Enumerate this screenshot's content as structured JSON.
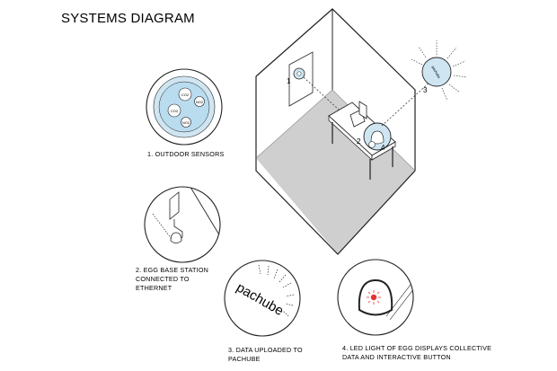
{
  "title": "SYSTEMS DIAGRAM",
  "sensors": {
    "gases": [
      "CO2",
      "NO2",
      "CO2",
      "NO2"
    ]
  },
  "steps": [
    {
      "number": "1",
      "caption_lines": [
        "1.   OUTDOOR SENSORS"
      ]
    },
    {
      "number": "2",
      "caption_lines": [
        "2. EGG BASE STATION",
        "CONNECTED TO",
        "ETHERNET"
      ]
    },
    {
      "number": "3",
      "caption_lines": [
        "3. DATA UPLOADED TO",
        "PACHUBE"
      ]
    },
    {
      "number": "4",
      "caption_lines": [
        "4. LED LIGHT OF EGG DISPLAYS COLLECTIVE",
        "DATA AND INTERACTIVE BUTTON"
      ]
    }
  ],
  "pachube_logo": "pachube",
  "colors": {
    "sensor_blue": "#cfe6f2",
    "sensor_inner": "#b9dcef",
    "floor_gray": "#cfcfcf",
    "led_red": "#e8322e",
    "line": "#222222"
  }
}
